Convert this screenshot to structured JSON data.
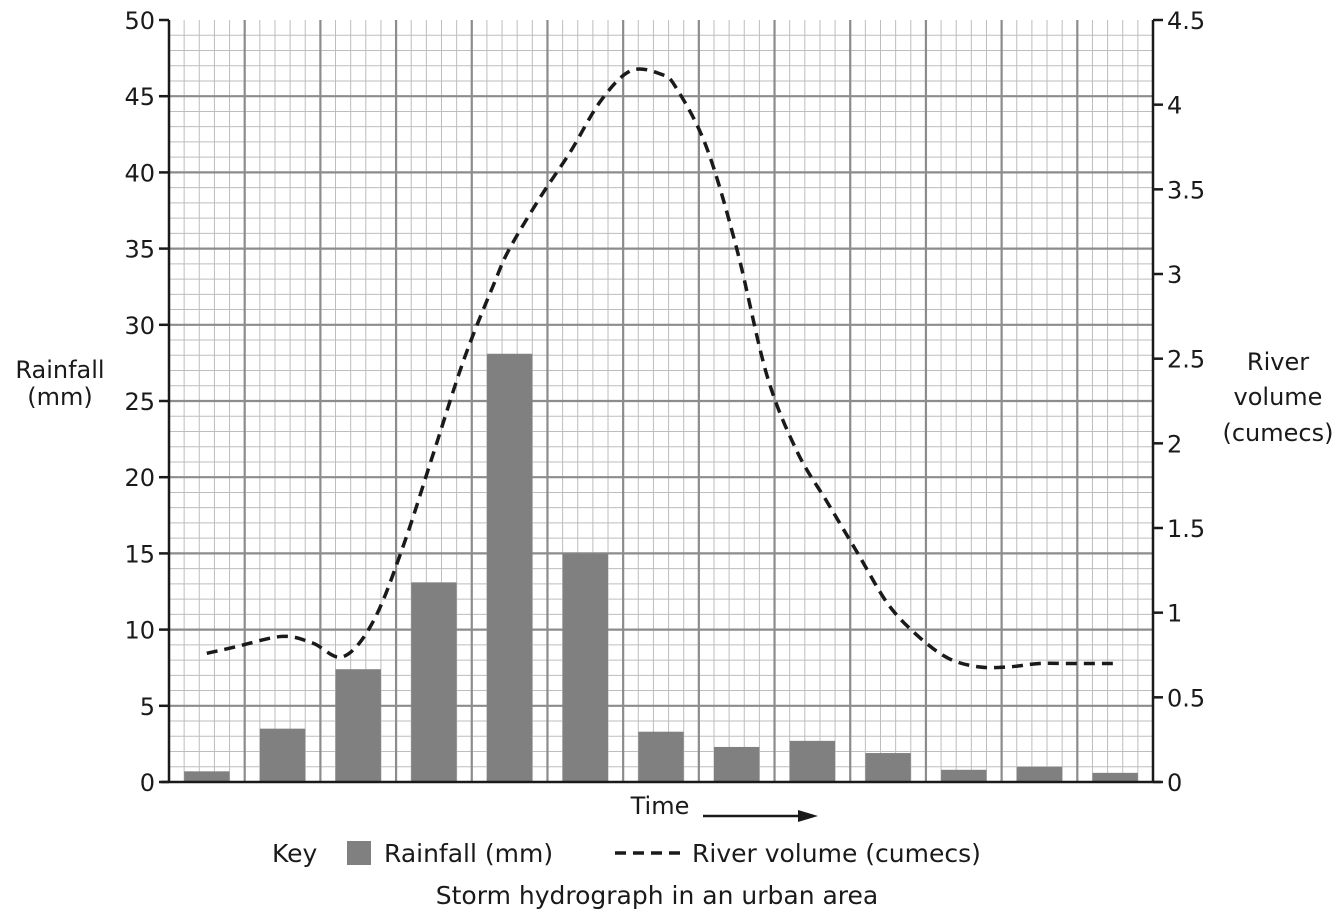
{
  "chart_data": {
    "type": "bar",
    "title": "",
    "caption": "Storm hydrograph in an urban area",
    "xlabel": "Time",
    "ylabel_left": [
      "Rainfall",
      "(mm)"
    ],
    "ylabel_right": [
      "River",
      "volume",
      "(cumecs)"
    ],
    "ylim_left": [
      0,
      50
    ],
    "ylim_right": [
      0,
      4.5
    ],
    "yticks_left": [
      "0",
      "5",
      "10",
      "15",
      "20",
      "25",
      "30",
      "35",
      "40",
      "45",
      "50"
    ],
    "yticks_right": [
      "0",
      "0.5",
      "1",
      "1.5",
      "2",
      "2.5",
      "3",
      "3.5",
      "4",
      "4.5"
    ],
    "grid": true,
    "bar_count": 13,
    "series": [
      {
        "name": "Rainfall (mm)",
        "type": "bar",
        "axis": "left",
        "color": "#808080",
        "values": [
          0.7,
          3.5,
          7.4,
          13.1,
          28.1,
          15.0,
          3.3,
          2.3,
          2.7,
          1.9,
          0.8,
          1.0,
          0.6
        ]
      },
      {
        "name": "River volume (cumecs)",
        "type": "line",
        "style": "dashed",
        "axis": "right",
        "color": "#1a1a1a",
        "x": [
          0,
          0.4,
          1,
          1.4,
          1.8,
          2.2,
          2.6,
          3,
          3.4,
          3.8,
          4,
          4.4,
          4.8,
          5.2,
          5.6,
          6,
          6.2,
          6.6,
          7,
          7.4,
          7.8,
          8.2,
          8.6,
          9,
          9.4,
          9.8,
          10.2,
          10.6,
          11,
          11.4,
          11.8,
          12
        ],
        "values": [
          0.76,
          0.8,
          0.86,
          0.82,
          0.74,
          0.95,
          1.4,
          1.95,
          2.5,
          2.95,
          3.15,
          3.45,
          3.72,
          4.02,
          4.2,
          4.18,
          4.1,
          3.75,
          3.15,
          2.4,
          1.95,
          1.65,
          1.35,
          1.05,
          0.86,
          0.73,
          0.68,
          0.68,
          0.7,
          0.7,
          0.7,
          0.7
        ]
      }
    ],
    "legend": {
      "title": "Key",
      "placement": "bottom"
    }
  }
}
